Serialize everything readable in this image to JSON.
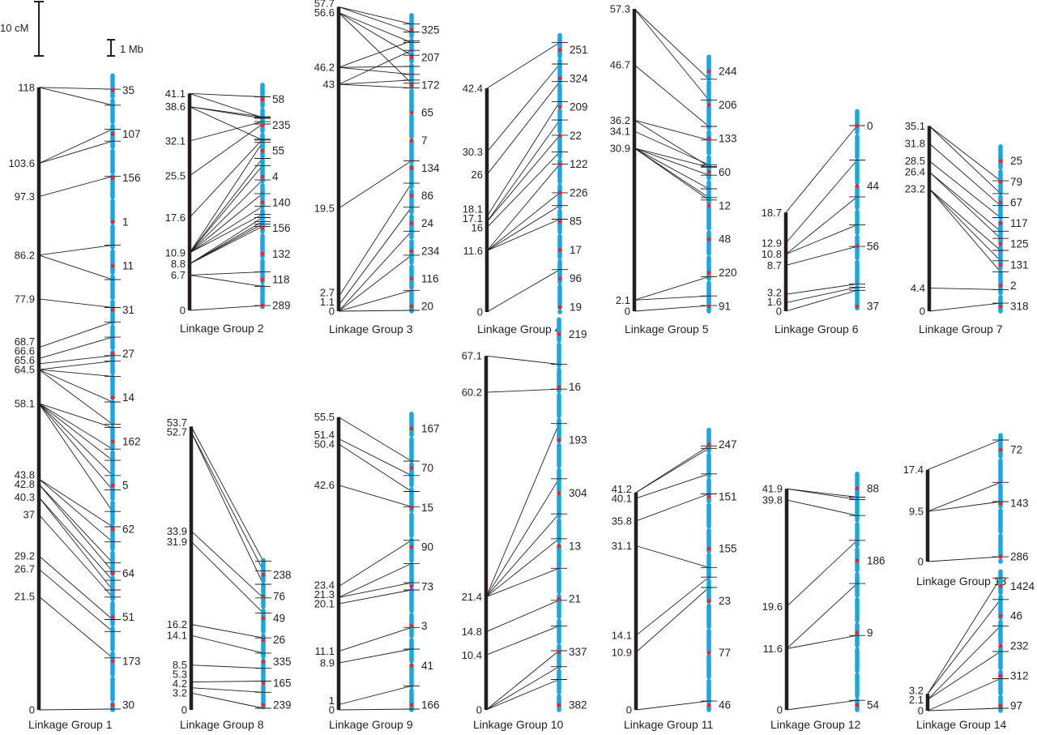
{
  "scale": {
    "cm_label": "10 cM",
    "mb_label": "1 Mb"
  },
  "colors": {
    "genetic_bar": "#231f20",
    "physical_segment": "#1ba6e0",
    "marker_dot": "#e6272e",
    "connector": "#231f20"
  },
  "groups": [
    {
      "name": "Linkage Group  1",
      "cm_max": 118,
      "mb_max": 79.3,
      "positions": [
        "118",
        "103.6",
        "97.3",
        "86.2",
        "77.9",
        "68.7",
        "66.6",
        "65.6",
        "64.5",
        "58.1",
        "43.8",
        "42.8",
        "40.3",
        "37",
        "29.2",
        "26.7",
        "21.5",
        "0"
      ],
      "markers": [
        "35",
        "107",
        "156",
        "1",
        "11",
        "31",
        "27",
        "14",
        "162",
        "5",
        "62",
        "64",
        "51",
        "173",
        "30"
      ],
      "links": [
        [
          118,
          77.6
        ],
        [
          118,
          75.6
        ],
        [
          103.6,
          72.6
        ],
        [
          103.6,
          71.1
        ],
        [
          97.3,
          66.7
        ],
        [
          86.2,
          58.1
        ],
        [
          86.2,
          53.8
        ],
        [
          77.9,
          50.3
        ],
        [
          68.7,
          48.5
        ],
        [
          66.6,
          46.6
        ],
        [
          65.6,
          44.3
        ],
        [
          64.5,
          43.6
        ],
        [
          64.5,
          41.7
        ],
        [
          64.5,
          35.7
        ],
        [
          64.5,
          38.5
        ],
        [
          58.1,
          35.3
        ],
        [
          58.1,
          32.6
        ],
        [
          58.1,
          31.2
        ],
        [
          58.1,
          29.3
        ],
        [
          58.1,
          27.5
        ],
        [
          58.1,
          24.8
        ],
        [
          43.8,
          22.9
        ],
        [
          43.8,
          21.0
        ],
        [
          42.8,
          18.4
        ],
        [
          42.8,
          17.3
        ],
        [
          40.3,
          16.2
        ],
        [
          40.3,
          15.0
        ],
        [
          37,
          14.1
        ],
        [
          29.2,
          11.3
        ],
        [
          26.7,
          9.8
        ],
        [
          21.5,
          6.5
        ],
        [
          0,
          0.1
        ]
      ]
    },
    {
      "name": "Linkage Group  2",
      "cm_max": 41.1,
      "mb_max": 28.2,
      "positions": [
        "41.1",
        "38.6",
        "32.1",
        "25.5",
        "17.6",
        "10.9",
        "8.8",
        "6.7",
        "0"
      ],
      "markers": [
        "58",
        "235",
        "55",
        "4",
        "140",
        "156",
        "132",
        "118",
        "289"
      ],
      "links": [
        [
          41.1,
          26.7
        ],
        [
          41.1,
          24.1
        ],
        [
          38.6,
          24.2
        ],
        [
          38.6,
          24.0
        ],
        [
          38.6,
          21.3
        ],
        [
          32.1,
          23.6
        ],
        [
          25.5,
          23.3
        ],
        [
          17.6,
          21.4
        ],
        [
          10.9,
          21.0
        ],
        [
          10.9,
          19.0
        ],
        [
          10.9,
          18.1
        ],
        [
          10.9,
          16.3
        ],
        [
          10.9,
          14.6
        ],
        [
          10.9,
          13.0
        ],
        [
          10.9,
          12.0
        ],
        [
          8.8,
          11.6
        ],
        [
          8.8,
          11.1
        ],
        [
          8.8,
          10.8
        ],
        [
          8.8,
          10.5
        ],
        [
          6.7,
          4.8
        ],
        [
          6.7,
          3.0
        ],
        [
          0,
          0.6
        ]
      ]
    },
    {
      "name": "Linkage Group  3",
      "cm_max": 57.7,
      "mb_max": 37.0,
      "positions": [
        "57.7",
        "56.6",
        "46.2",
        "43",
        "19.5",
        "2.7",
        "1.1",
        "0"
      ],
      "markers": [
        "325",
        "207",
        "172",
        "65",
        "7",
        "134",
        "86",
        "24",
        "234",
        "116",
        "20"
      ],
      "links": [
        [
          57.7,
          35.9
        ],
        [
          57.7,
          34.9
        ],
        [
          56.6,
          33.6
        ],
        [
          56.6,
          32.0
        ],
        [
          56.6,
          28.5
        ],
        [
          46.2,
          33.8
        ],
        [
          46.2,
          30.6
        ],
        [
          46.2,
          29.6
        ],
        [
          43,
          32.6
        ],
        [
          43,
          28.9
        ],
        [
          43,
          27.9
        ],
        [
          19.5,
          18.8
        ],
        [
          2.7,
          16.0
        ],
        [
          1.1,
          13.0
        ],
        [
          0,
          10.0
        ],
        [
          0,
          7.0
        ],
        [
          0,
          2.6
        ],
        [
          0,
          0.1
        ]
      ]
    },
    {
      "name": "Linkage Group  4",
      "cm_max": 42.4,
      "mb_max": 34.6,
      "positions": [
        "42.4",
        "30.3",
        "26",
        "18.1",
        "17.1",
        "16",
        "11.6",
        "0"
      ],
      "markers": [
        "251",
        "324",
        "209",
        "22",
        "122",
        "226",
        "85",
        "17",
        "96",
        "19"
      ],
      "links": [
        [
          42.4,
          33.7
        ],
        [
          30.3,
          31.0
        ],
        [
          26,
          28.8
        ],
        [
          18.1,
          26.3
        ],
        [
          17.1,
          24.0
        ],
        [
          17.1,
          22.1
        ],
        [
          16,
          20.0
        ],
        [
          11.6,
          18.5
        ],
        [
          11.6,
          14.9
        ],
        [
          11.6,
          13.3
        ],
        [
          11.6,
          11.6
        ],
        [
          0,
          5.3
        ]
      ]
    },
    {
      "name": "Linkage Group  5",
      "cm_max": 57.3,
      "mb_max": 31.8,
      "positions": [
        "57.3",
        "46.7",
        "36.2",
        "34.1",
        "30.9",
        "2.1",
        "0"
      ],
      "markers": [
        "244",
        "206",
        "133",
        "60",
        "12",
        "48",
        "220",
        "91"
      ],
      "links": [
        [
          57.3,
          29.0
        ],
        [
          57.3,
          26.4
        ],
        [
          46.7,
          23.1
        ],
        [
          36.2,
          21.4
        ],
        [
          36.2,
          18.1
        ],
        [
          34.1,
          18.3
        ],
        [
          30.9,
          18.0
        ],
        [
          30.9,
          17.0
        ],
        [
          30.9,
          15.3
        ],
        [
          30.9,
          14.2
        ],
        [
          30.9,
          13.9
        ],
        [
          2.1,
          4.3
        ],
        [
          2.1,
          1.9
        ],
        [
          0,
          0.7
        ]
      ]
    },
    {
      "name": "Linkage Group  6",
      "cm_max": 18.7,
      "mb_max": 25.0,
      "positions": [
        "18.7",
        "12.9",
        "10.8",
        "8.7",
        "3.2",
        "1.6",
        "0"
      ],
      "markers": [
        "0",
        "44",
        "56",
        "37"
      ],
      "links": [
        [
          18.7,
          23.2
        ],
        [
          12.9,
          18.9
        ],
        [
          10.8,
          14.3
        ],
        [
          10.8,
          10.8
        ],
        [
          8.7,
          8.1
        ],
        [
          3.2,
          3.4
        ],
        [
          1.6,
          3.0
        ],
        [
          0,
          2.6
        ]
      ]
    },
    {
      "name": "Linkage Group  7",
      "cm_max": 35.1,
      "mb_max": 20.6,
      "positions": [
        "35.1",
        "31.8",
        "28.5",
        "26.4",
        "23.2",
        "4.4",
        "0"
      ],
      "markers": [
        "25",
        "79",
        "67",
        "117",
        "125",
        "131",
        "2",
        "318"
      ],
      "links": [
        [
          35.1,
          16.3
        ],
        [
          35.1,
          14.7
        ],
        [
          31.8,
          13.2
        ],
        [
          28.5,
          11.7
        ],
        [
          26.4,
          10.0
        ],
        [
          26.4,
          9.1
        ],
        [
          23.2,
          7.6
        ],
        [
          23.2,
          6.3
        ],
        [
          23.2,
          4.9
        ],
        [
          4.4,
          2.7
        ],
        [
          0,
          1.0
        ]
      ]
    },
    {
      "name": "Linkage Group  8",
      "cm_max": 53.7,
      "mb_max": 18.7,
      "positions": [
        "53.7",
        "52.7",
        "33.9",
        "31.9",
        "16.2",
        "14.1",
        "8.5",
        "5.3",
        "4.2",
        "3.2",
        "0"
      ],
      "markers": [
        "238",
        "76",
        "49",
        "26",
        "335",
        "165",
        "239"
      ],
      "links": [
        [
          53.7,
          18.6
        ],
        [
          52.7,
          17.4
        ],
        [
          52.7,
          15.7
        ],
        [
          33.9,
          14.0
        ],
        [
          31.9,
          12.1
        ],
        [
          16.2,
          9.0
        ],
        [
          14.1,
          7.1
        ],
        [
          8.5,
          5.2
        ],
        [
          5.3,
          3.6
        ],
        [
          4.2,
          2.2
        ],
        [
          3.2,
          0.2
        ]
      ]
    },
    {
      "name": "Linkage Group  9",
      "cm_max": 55.5,
      "mb_max": 37.0,
      "positions": [
        "55.5",
        "51.4",
        "50.4",
        "42.6",
        "23.4",
        "21.3",
        "20.1",
        "11.1",
        "8.9",
        "1",
        "0"
      ],
      "markers": [
        "167",
        "70",
        "15",
        "90",
        "73",
        "3",
        "41",
        "166"
      ],
      "links": [
        [
          55.5,
          31.1
        ],
        [
          51.4,
          29.3
        ],
        [
          50.4,
          27.3
        ],
        [
          42.6,
          25.4
        ],
        [
          23.4,
          21.2
        ],
        [
          21.3,
          18.3
        ],
        [
          21.3,
          15.9
        ],
        [
          20.1,
          15.0
        ],
        [
          11.1,
          10.3
        ],
        [
          8.9,
          7.6
        ],
        [
          1,
          3.0
        ],
        [
          0,
          0.1
        ]
      ]
    },
    {
      "name": "Linkage Group  10",
      "cm_max": 67.1,
      "mb_max": 48.8,
      "positions": [
        "67.1",
        "60.2",
        "21.4",
        "14.8",
        "10.4",
        "0"
      ],
      "markers": [
        "219",
        "16",
        "193",
        "304",
        "13",
        "21",
        "337",
        "382"
      ],
      "links": [
        [
          67.1,
          43.2
        ],
        [
          60.2,
          40.1
        ],
        [
          21.4,
          35.8
        ],
        [
          21.4,
          28.9
        ],
        [
          21.4,
          24.5
        ],
        [
          21.4,
          21.4
        ],
        [
          21.4,
          17.7
        ],
        [
          14.8,
          13.7
        ],
        [
          10.4,
          10.5
        ],
        [
          0,
          7.4
        ],
        [
          0,
          5.4
        ],
        [
          0,
          3.8
        ]
      ]
    },
    {
      "name": "Linkage Group  11",
      "cm_max": 41.2,
      "mb_max": 35.0,
      "positions": [
        "41.2",
        "40.1",
        "35.8",
        "31.1",
        "14.1",
        "10.9",
        "0"
      ],
      "markers": [
        "247",
        "151",
        "155",
        "23",
        "77",
        "46"
      ],
      "links": [
        [
          41.2,
          33.0
        ],
        [
          41.2,
          32.7
        ],
        [
          40.1,
          29.5
        ],
        [
          35.8,
          27.0
        ],
        [
          31.1,
          17.8
        ],
        [
          14.1,
          16.6
        ],
        [
          10.9,
          15.3
        ],
        [
          0,
          1.1
        ]
      ]
    },
    {
      "name": "Linkage Group  12",
      "cm_max": 41.9,
      "mb_max": 29.5,
      "positions": [
        "41.9",
        "39.8",
        "19.6",
        "11.6",
        "0"
      ],
      "markers": [
        "88",
        "186",
        "9",
        "54"
      ],
      "links": [
        [
          41.9,
          26.6
        ],
        [
          41.9,
          26.3
        ],
        [
          39.8,
          24.3
        ],
        [
          19.6,
          21.2
        ],
        [
          11.6,
          15.8
        ],
        [
          11.6,
          9.3
        ],
        [
          0,
          1.2
        ]
      ]
    },
    {
      "name": "Linkage Group  13",
      "cm_max": 17.4,
      "mb_max": 15.8,
      "positions": [
        "17.4",
        "9.5",
        "0"
      ],
      "markers": [
        "72",
        "143",
        "286"
      ],
      "links": [
        [
          17.4,
          15.2
        ],
        [
          9.5,
          9.9
        ],
        [
          9.5,
          7.5
        ],
        [
          0,
          0.6
        ]
      ]
    },
    {
      "name": "Linkage Group  14",
      "cm_max": 3.2,
      "mb_max": 17.4,
      "positions": [
        "3.2",
        "2.1",
        "0"
      ],
      "markers": [
        "1424",
        "46",
        "232",
        "312",
        "97"
      ],
      "links": [
        [
          3.2,
          16.6
        ],
        [
          3.2,
          13.9
        ],
        [
          2.1,
          10.6
        ],
        [
          2.1,
          7.4
        ],
        [
          0,
          4.0
        ],
        [
          0,
          0.3
        ]
      ]
    }
  ]
}
